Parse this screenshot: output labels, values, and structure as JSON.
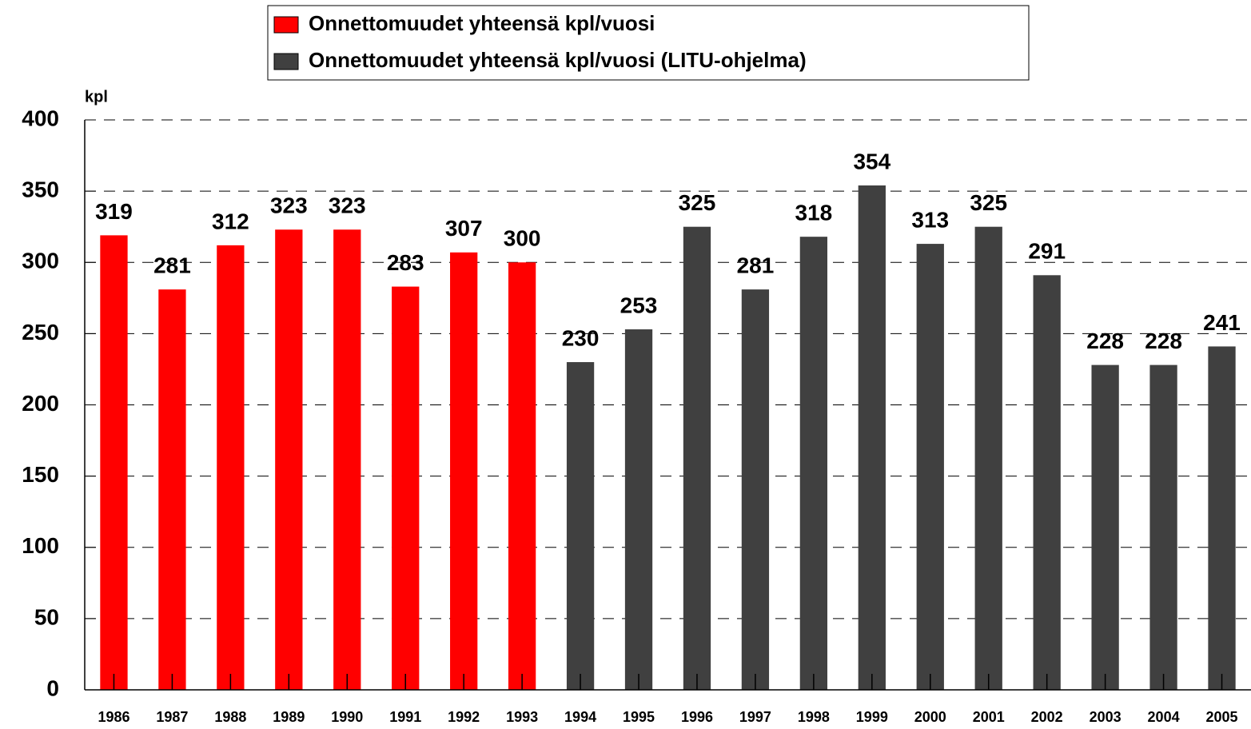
{
  "chart_data": {
    "type": "bar",
    "categories": [
      "1986",
      "1987",
      "1988",
      "1989",
      "1990",
      "1991",
      "1992",
      "1993",
      "1994",
      "1995",
      "1996",
      "1997",
      "1998",
      "1999",
      "2000",
      "2001",
      "2002",
      "2003",
      "2004",
      "2005"
    ],
    "series": [
      {
        "name": "Onnettomuudet yhteensä  kpl/vuosi",
        "color": "#ff0000",
        "values": [
          319,
          281,
          312,
          323,
          323,
          283,
          307,
          300,
          null,
          null,
          null,
          null,
          null,
          null,
          null,
          null,
          null,
          null,
          null,
          null
        ]
      },
      {
        "name": "Onnettomuudet yhteensä kpl/vuosi (LITU-ohjelma)",
        "color": "#404040",
        "values": [
          null,
          null,
          null,
          null,
          null,
          null,
          null,
          null,
          230,
          253,
          325,
          281,
          318,
          354,
          313,
          325,
          291,
          228,
          228,
          241
        ]
      }
    ],
    "y_axis_label": "kpl",
    "ylim": [
      0,
      400
    ],
    "yticks": [
      0,
      50,
      100,
      150,
      200,
      250,
      300,
      350,
      400
    ],
    "grid": true,
    "legend": "top"
  }
}
